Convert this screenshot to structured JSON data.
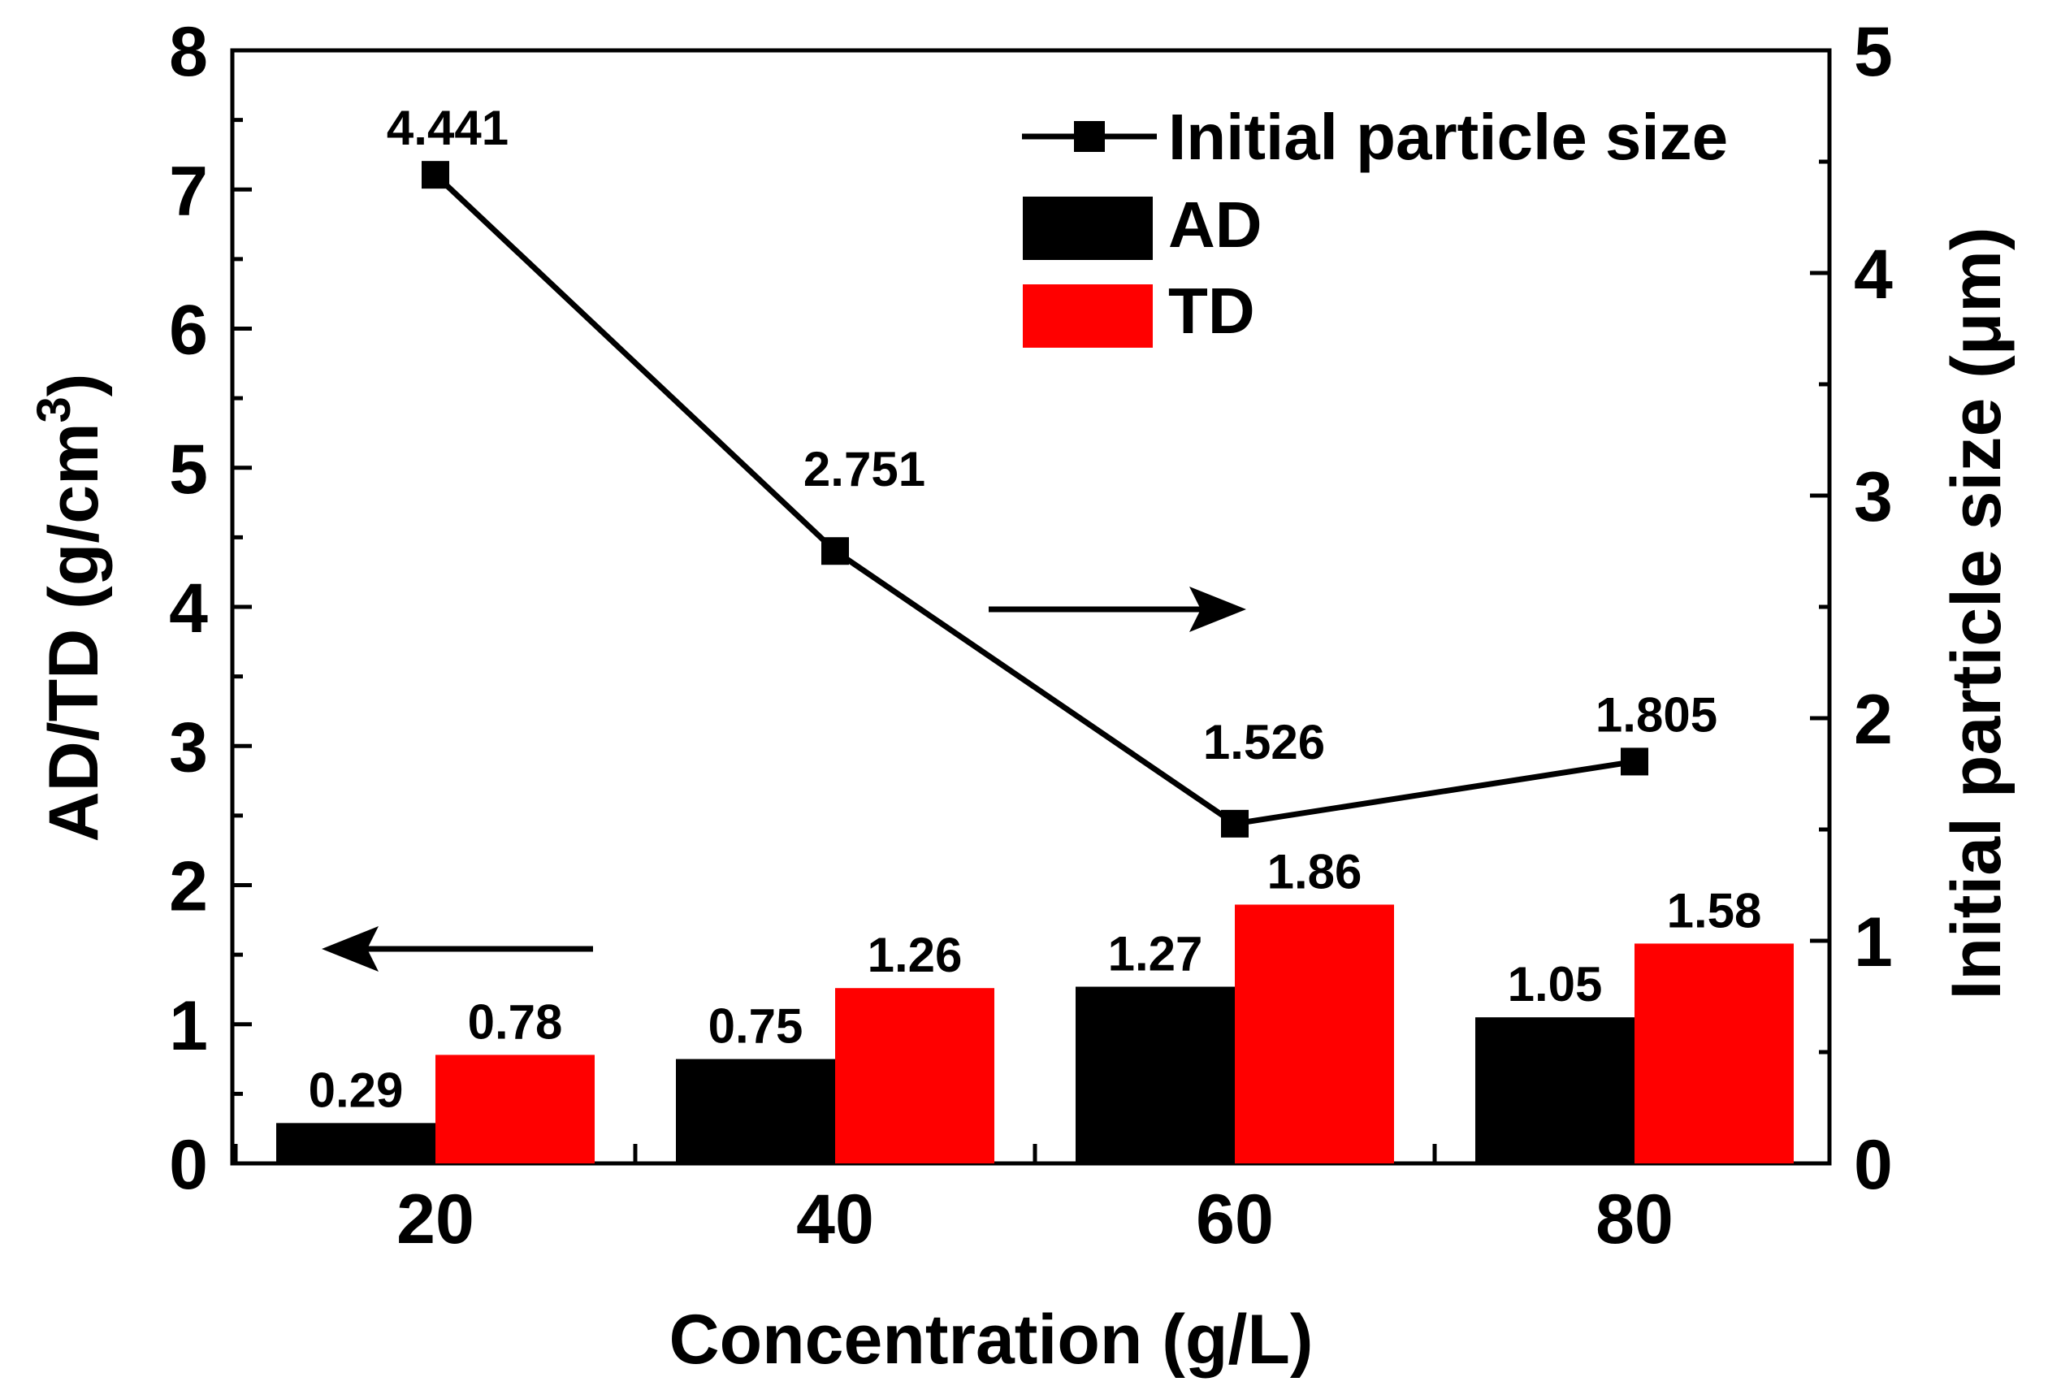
{
  "chart_data": {
    "type": "bar+line",
    "categories": [
      "20",
      "40",
      "60",
      "80"
    ],
    "xlabel": "Concentration (g/L)",
    "ylabel_left": "AD/TD (g/cm",
    "ylabel_left_sup": "3",
    "ylabel_left_close": ")",
    "ylabel_right": "Initial particle size (μm)",
    "ylim_left": [
      0,
      8
    ],
    "ylim_right": [
      0,
      5
    ],
    "yticks_left": [
      "0",
      "1",
      "2",
      "3",
      "4",
      "5",
      "6",
      "7",
      "8"
    ],
    "yticks_right": [
      "0",
      "1",
      "2",
      "3",
      "4",
      "5"
    ],
    "series": [
      {
        "name": "AD",
        "axis": "left",
        "kind": "bar",
        "color": "#000000",
        "values": [
          0.29,
          0.75,
          1.27,
          1.05
        ],
        "labels": [
          "0.29",
          "0.75",
          "1.27",
          "1.05"
        ]
      },
      {
        "name": "TD",
        "axis": "left",
        "kind": "bar",
        "color": "#ff0000",
        "values": [
          0.78,
          1.26,
          1.86,
          1.58
        ],
        "labels": [
          "0.78",
          "1.26",
          "1.86",
          "1.58"
        ]
      },
      {
        "name": "Initial particle size",
        "axis": "right",
        "kind": "line",
        "color": "#000000",
        "marker": "square",
        "values": [
          4.441,
          2.751,
          1.526,
          1.805
        ],
        "labels": [
          "4.441",
          "2.751",
          "1.526",
          "1.805"
        ]
      }
    ],
    "legend": [
      {
        "name": "Initial particle size",
        "symbol": "line-square"
      },
      {
        "name": "AD",
        "symbol": "box",
        "color": "#000000"
      },
      {
        "name": "TD",
        "symbol": "box",
        "color": "#ff0000"
      }
    ],
    "legend_position": "top-right",
    "annotations": [
      {
        "type": "arrow",
        "direction": "left",
        "meaning": "bars refer to left axis"
      },
      {
        "type": "arrow",
        "direction": "right",
        "meaning": "line refers to right axis"
      }
    ]
  }
}
